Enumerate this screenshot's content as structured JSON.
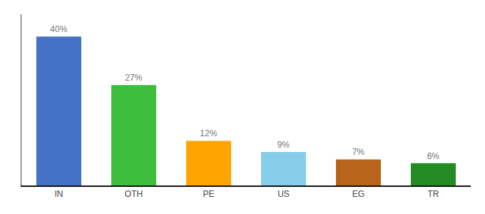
{
  "chart_data": {
    "type": "bar",
    "categories": [
      "IN",
      "OTH",
      "PE",
      "US",
      "EG",
      "TR"
    ],
    "values": [
      40,
      27,
      12,
      9,
      7,
      6
    ],
    "value_labels": [
      "40%",
      "27%",
      "12%",
      "9%",
      "7%",
      "6%"
    ],
    "data_labels": true,
    "colors": [
      "#4472C4",
      "#3DBE3D",
      "#FFA500",
      "#87CEEB",
      "#B8641A",
      "#228B22"
    ],
    "ylim": [
      0,
      46
    ],
    "grid": false,
    "tick_labels": "x"
  }
}
